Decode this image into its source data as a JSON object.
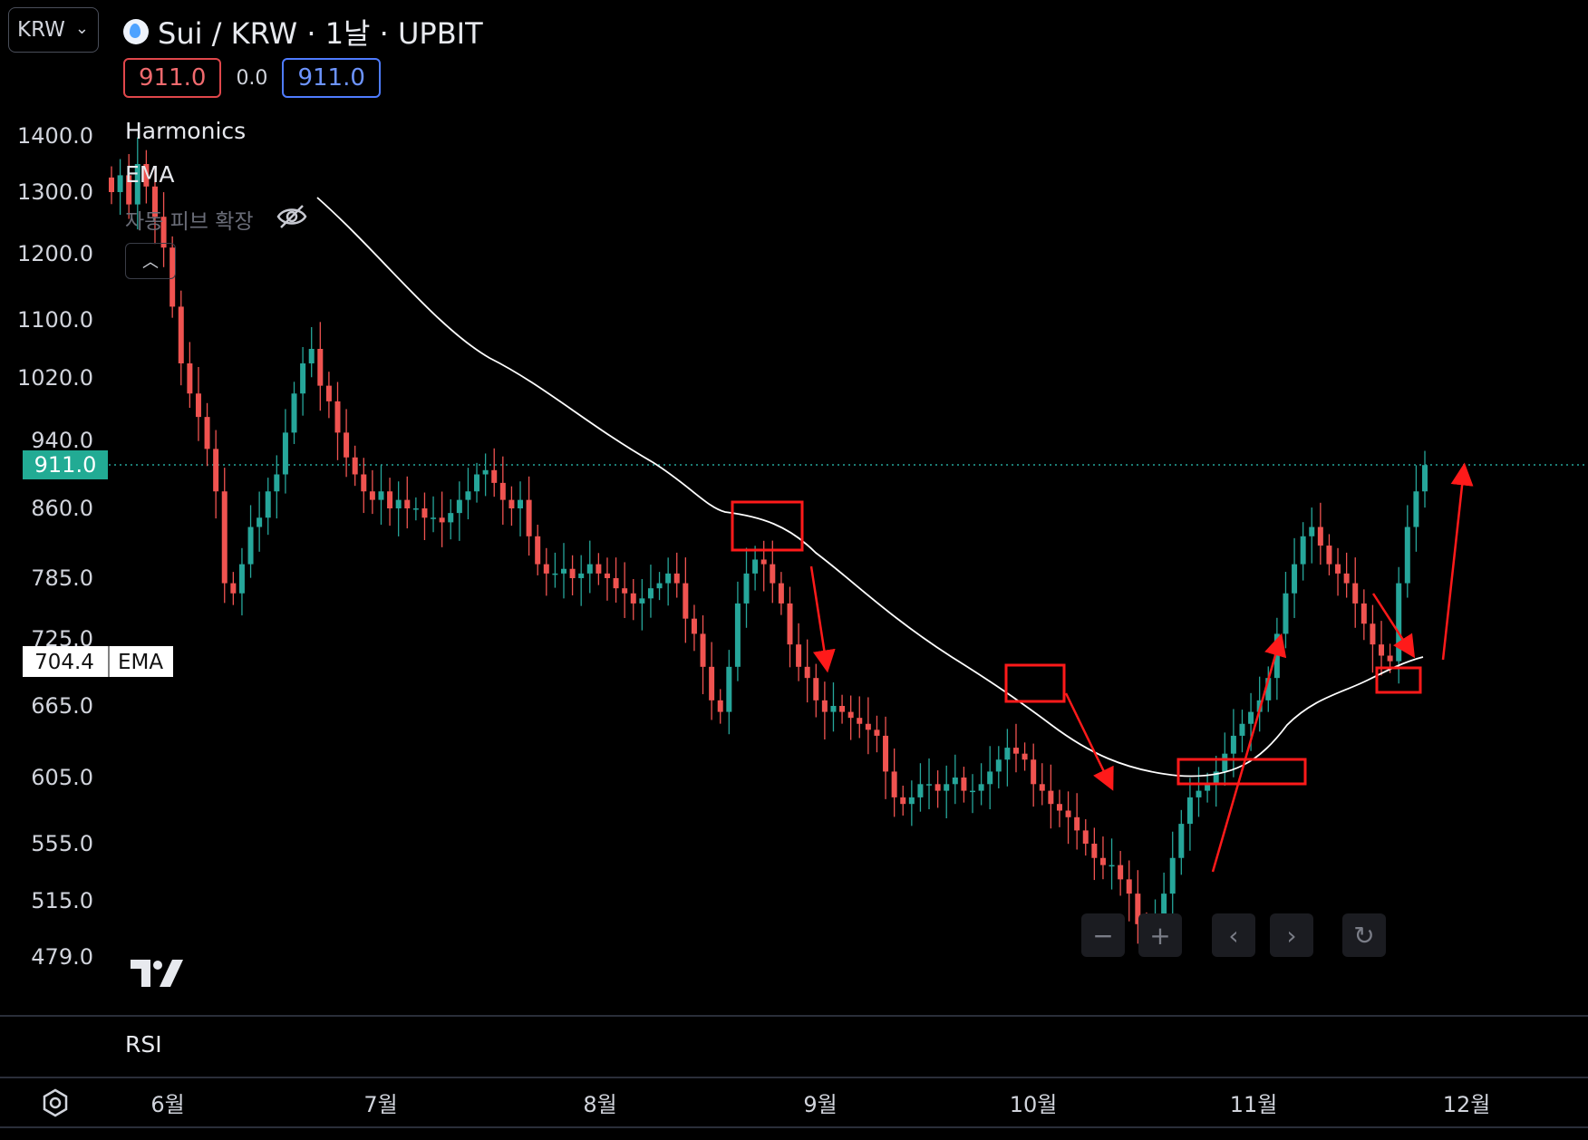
{
  "currency_select": {
    "value": "KRW",
    "chevron_icon": "chevron-down-icon"
  },
  "title": "Sui / KRW · 1날 · UPBIT",
  "prices": {
    "sell": "911.0",
    "spread": "0.0",
    "buy": "911.0"
  },
  "indicators": {
    "harmonics": "Harmonics",
    "ema": "EMA",
    "auto_pivot": "자동 피브 확장"
  },
  "rsi_label": "RSI",
  "price_tag": "911.0",
  "ema_tag": {
    "value": "704.4",
    "label": "EMA"
  },
  "colors": {
    "up": "#26a69a",
    "down": "#ef5350",
    "ema": "#ffffff",
    "annotation": "#ff1a1a",
    "current_price_tag": "#22ab94"
  },
  "chart_data": {
    "type": "candlestick",
    "symbol": "Sui / KRW",
    "interval": "1날",
    "exchange": "UPBIT",
    "y_ticks": [
      1400.0,
      1300.0,
      1200.0,
      1100.0,
      1020.0,
      940.0,
      860.0,
      785.0,
      725.0,
      665.0,
      605.0,
      555.0,
      515.0,
      479.0
    ],
    "y_tick_labels": [
      "1400.0",
      "1300.0",
      "1200.0",
      "1100.0",
      "1020.0",
      "940.0",
      "860.0",
      "785.0",
      "725.0",
      "665.0",
      "605.0",
      "555.0",
      "515.0",
      "479.0"
    ],
    "x_labels": [
      "6월",
      "7월",
      "8월",
      "9월",
      "10월",
      "11월",
      "12월"
    ],
    "current_price": 911.0,
    "ema_value": 704.4,
    "close_series": [
      1300,
      1330,
      1280,
      1350,
      1310,
      1260,
      1210,
      1120,
      1040,
      1000,
      970,
      930,
      880,
      780,
      770,
      800,
      840,
      850,
      880,
      900,
      950,
      1000,
      1040,
      1060,
      1010,
      990,
      950,
      920,
      900,
      880,
      870,
      880,
      860,
      870,
      860,
      860,
      850,
      850,
      845,
      855,
      870,
      880,
      900,
      905,
      890,
      870,
      860,
      870,
      830,
      800,
      790,
      790,
      795,
      785,
      790,
      800,
      790,
      785,
      775,
      770,
      760,
      765,
      775,
      780,
      790,
      780,
      745,
      730,
      700,
      670,
      660,
      700,
      760,
      790,
      805,
      800,
      780,
      760,
      720,
      700,
      690,
      670,
      660,
      665,
      660,
      655,
      650,
      645,
      640,
      610,
      590,
      585,
      590,
      600,
      600,
      595,
      600,
      605,
      595,
      595,
      600,
      610,
      620,
      630,
      625,
      620,
      600,
      595,
      585,
      580,
      575,
      565,
      555,
      545,
      540,
      540,
      530,
      520,
      500,
      495,
      505,
      520,
      545,
      570,
      590,
      595,
      600,
      610,
      625,
      640,
      650,
      660,
      670,
      690,
      730,
      770,
      800,
      830,
      840,
      820,
      800,
      790,
      780,
      760,
      740,
      720,
      710,
      705,
      780,
      840,
      880,
      911
    ]
  },
  "nav_buttons": [
    "minus-icon",
    "plus-icon",
    "chevron-left-icon",
    "chevron-right-icon",
    "reset-icon"
  ]
}
